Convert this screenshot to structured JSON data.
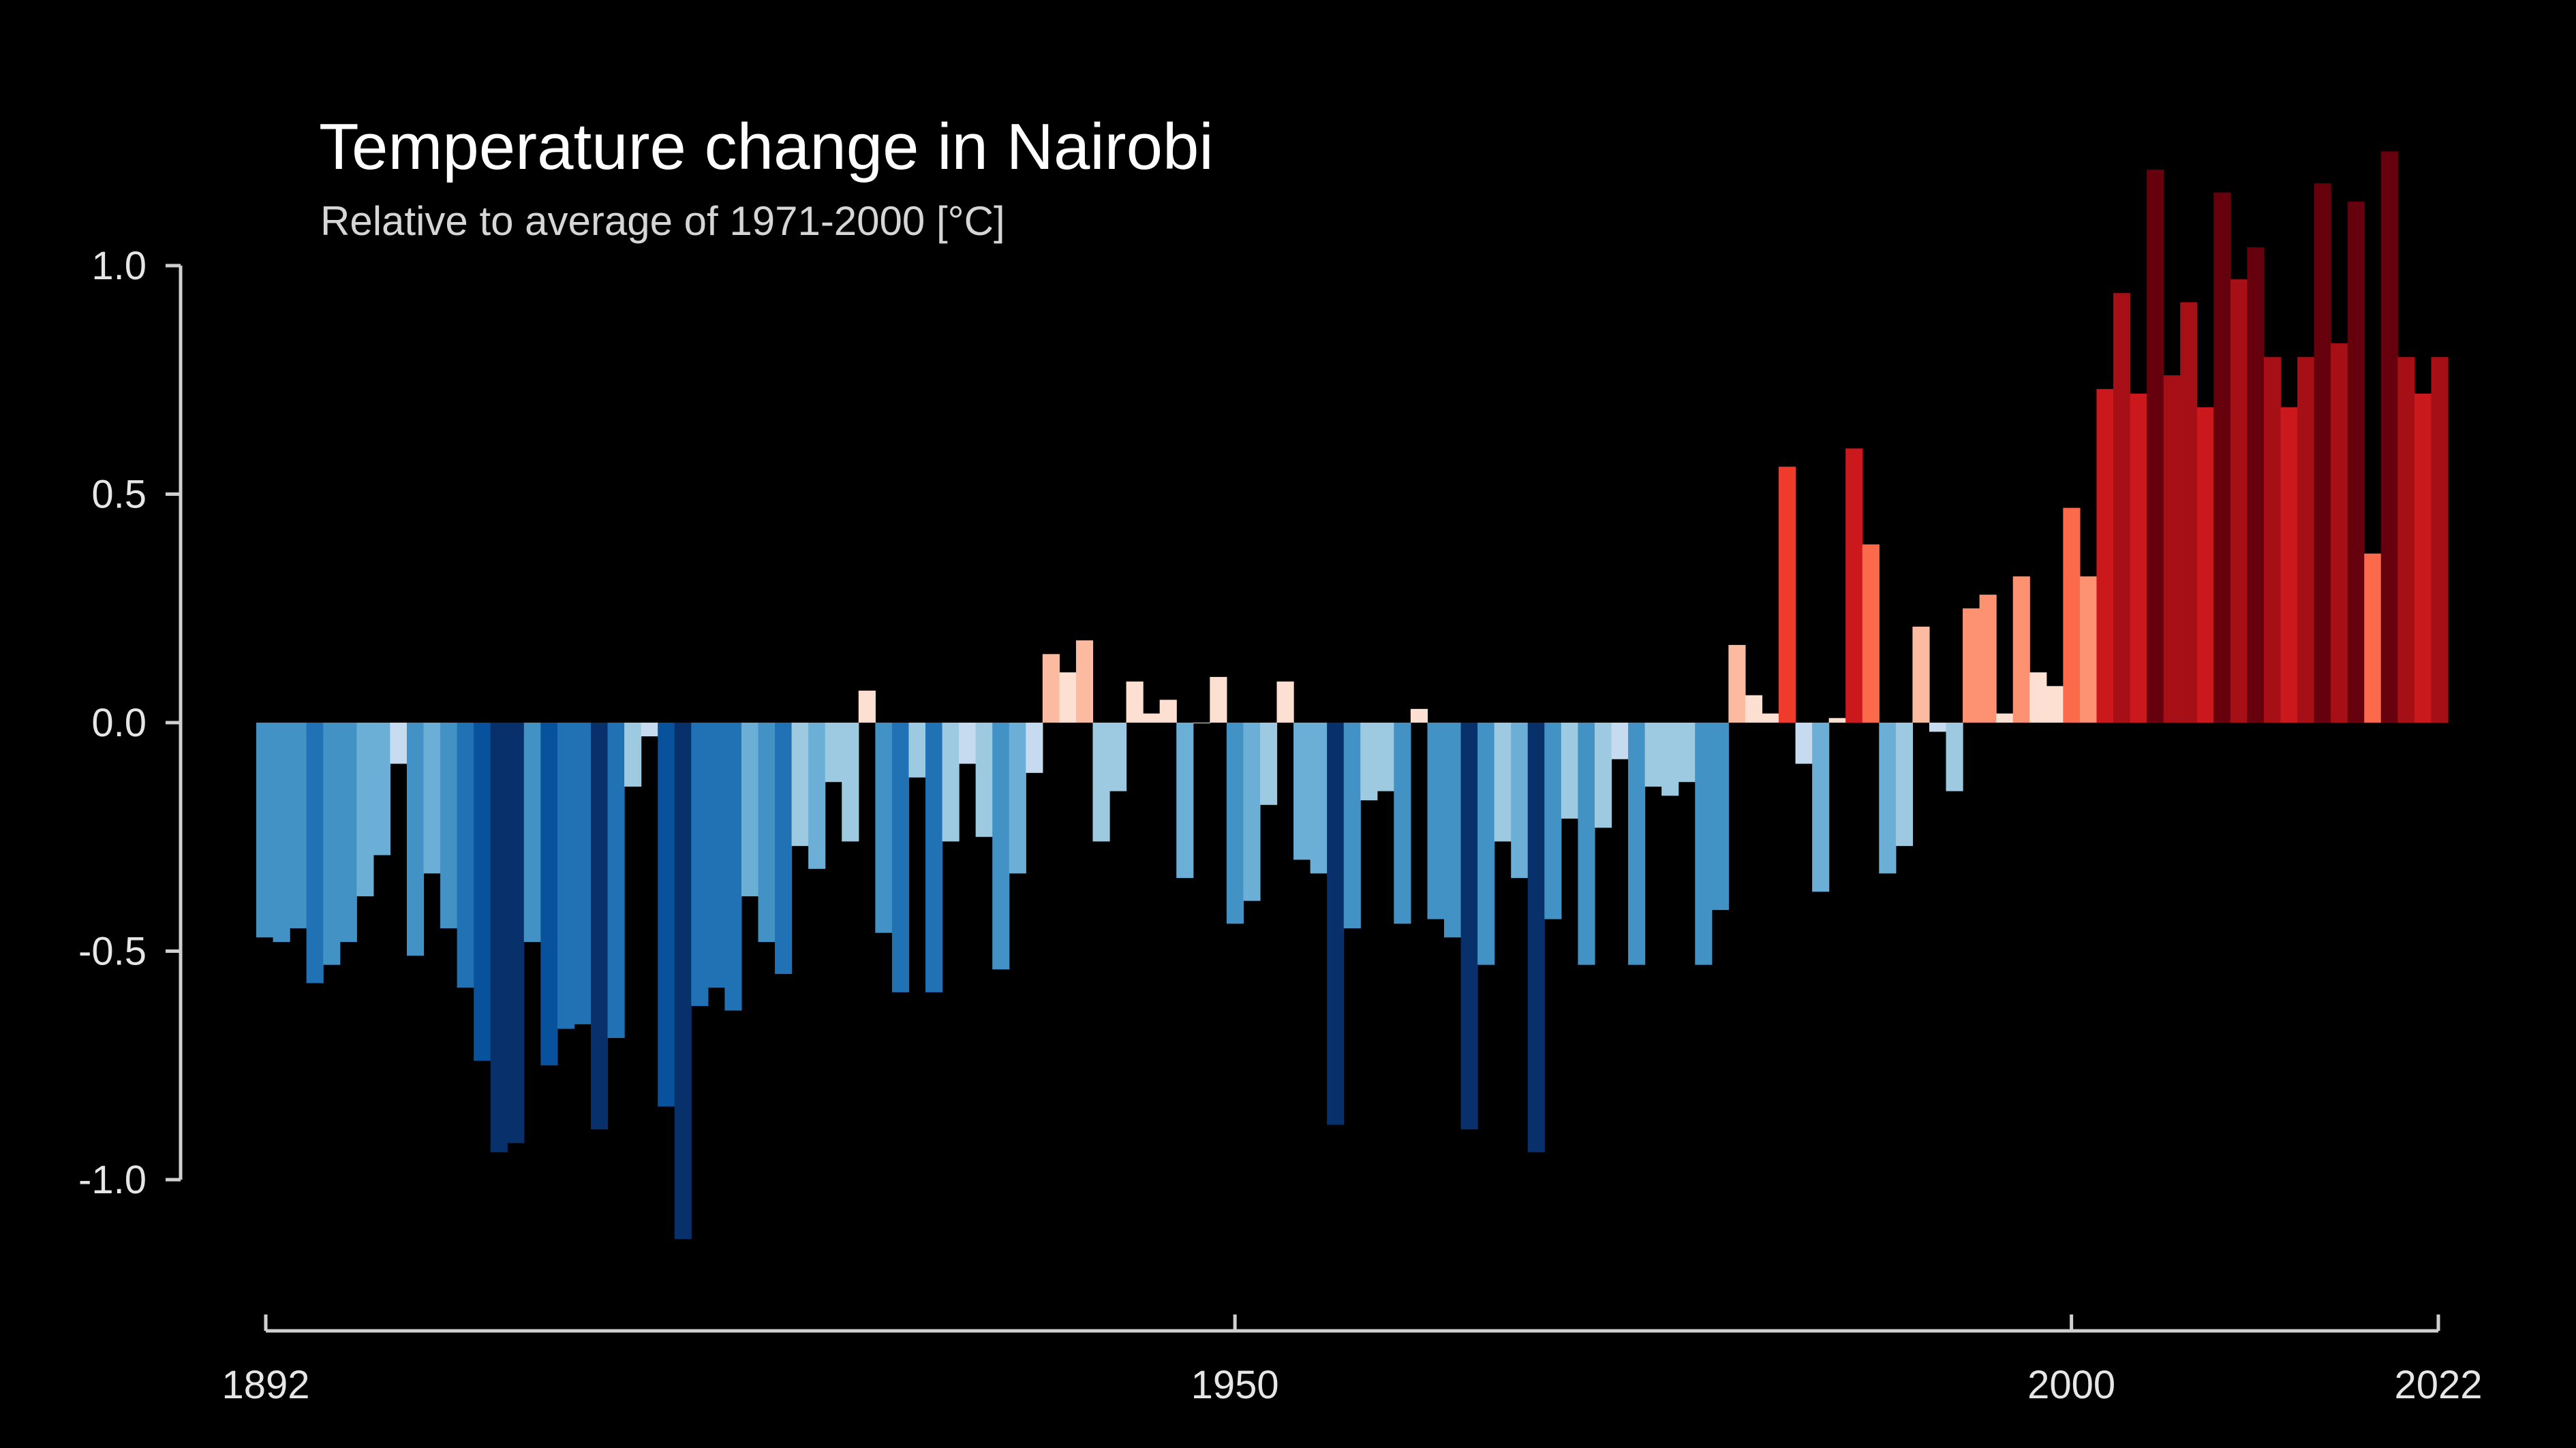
{
  "chart_data": {
    "type": "bar",
    "title": "Temperature change in Nairobi",
    "subtitle": "Relative to average of 1971-2000  [°C]",
    "xlabel": "",
    "ylabel": "",
    "x_start": 1892,
    "x_end": 2022,
    "ylim": [
      -1.2,
      1.1
    ],
    "yticks": [
      "1.0",
      "0.5",
      "0.0",
      "-0.5",
      "-1.0"
    ],
    "ytick_values": [
      1.0,
      0.5,
      0.0,
      -0.5,
      -1.0
    ],
    "xticks": [
      "1892",
      "1950",
      "2000",
      "2022"
    ],
    "xtick_values": [
      1892,
      1950,
      2000,
      2022
    ],
    "grid": false,
    "legend": "none",
    "colors": {
      "background": "#000000",
      "cold_scale": [
        "#08306b",
        "#08519c",
        "#2171b5",
        "#4292c6",
        "#6baed6",
        "#9ecae1",
        "#c6dbef"
      ],
      "warm_scale": [
        "#fee0d2",
        "#fcbba1",
        "#fc9272",
        "#fb6a4a",
        "#ef3b2c",
        "#cb181d",
        "#a50f15",
        "#67000d"
      ]
    },
    "years": [
      1892,
      1893,
      1894,
      1895,
      1896,
      1897,
      1898,
      1899,
      1900,
      1901,
      1902,
      1903,
      1904,
      1905,
      1906,
      1907,
      1908,
      1909,
      1910,
      1911,
      1912,
      1913,
      1914,
      1915,
      1916,
      1917,
      1918,
      1919,
      1920,
      1921,
      1922,
      1923,
      1924,
      1925,
      1926,
      1927,
      1928,
      1929,
      1930,
      1931,
      1932,
      1933,
      1934,
      1935,
      1936,
      1937,
      1938,
      1939,
      1940,
      1941,
      1942,
      1943,
      1944,
      1945,
      1946,
      1947,
      1948,
      1949,
      1950,
      1951,
      1952,
      1953,
      1954,
      1955,
      1956,
      1957,
      1958,
      1959,
      1960,
      1961,
      1962,
      1963,
      1964,
      1965,
      1966,
      1967,
      1968,
      1969,
      1970,
      1971,
      1972,
      1973,
      1974,
      1975,
      1976,
      1977,
      1978,
      1979,
      1980,
      1981,
      1982,
      1983,
      1984,
      1985,
      1986,
      1987,
      1988,
      1989,
      1990,
      1991,
      1992,
      1993,
      1994,
      1995,
      1996,
      1997,
      1998,
      1999,
      2000,
      2001,
      2002,
      2003,
      2004,
      2005,
      2006,
      2007,
      2008,
      2009,
      2010,
      2011,
      2012,
      2013,
      2014,
      2015,
      2016,
      2017,
      2018,
      2019,
      2020,
      2021,
      2022
    ],
    "values": [
      -0.47,
      -0.48,
      -0.45,
      -0.57,
      -0.53,
      -0.48,
      -0.38,
      -0.29,
      -0.09,
      -0.51,
      -0.33,
      -0.45,
      -0.58,
      -0.74,
      -0.94,
      -0.92,
      -0.48,
      -0.75,
      -0.67,
      -0.66,
      -0.89,
      -0.69,
      -0.14,
      -0.03,
      -0.84,
      -1.13,
      -0.62,
      -0.58,
      -0.63,
      -0.38,
      -0.48,
      -0.55,
      -0.27,
      -0.32,
      -0.13,
      -0.26,
      0.07,
      -0.46,
      -0.59,
      -0.12,
      -0.59,
      -0.26,
      -0.09,
      -0.25,
      -0.54,
      -0.33,
      -0.11,
      0.15,
      0.11,
      0.18,
      -0.26,
      -0.15,
      0.09,
      0.02,
      0.05,
      -0.34,
      0.0,
      0.1,
      -0.44,
      -0.39,
      -0.18,
      0.09,
      -0.3,
      -0.33,
      -0.88,
      -0.45,
      -0.17,
      -0.15,
      -0.44,
      0.03,
      -0.43,
      -0.47,
      -0.89,
      -0.53,
      -0.26,
      -0.34,
      -0.94,
      -0.43,
      -0.21,
      -0.53,
      -0.23,
      -0.08,
      -0.53,
      -0.14,
      -0.16,
      -0.13,
      -0.53,
      -0.41,
      0.17,
      0.06,
      0.02,
      0.56,
      -0.09,
      -0.37,
      0.01,
      0.6,
      0.39,
      -0.33,
      -0.27,
      0.21,
      -0.02,
      -0.15,
      0.25,
      0.28,
      0.02,
      0.32,
      0.11,
      0.08,
      0.47,
      0.32,
      0.73,
      0.94,
      0.72,
      1.21,
      0.76,
      0.92,
      0.69,
      1.16,
      0.97,
      1.04,
      0.8,
      0.69,
      0.8,
      1.18,
      0.83,
      1.14,
      0.37,
      1.25,
      0.8,
      0.72,
      0.8
    ]
  }
}
